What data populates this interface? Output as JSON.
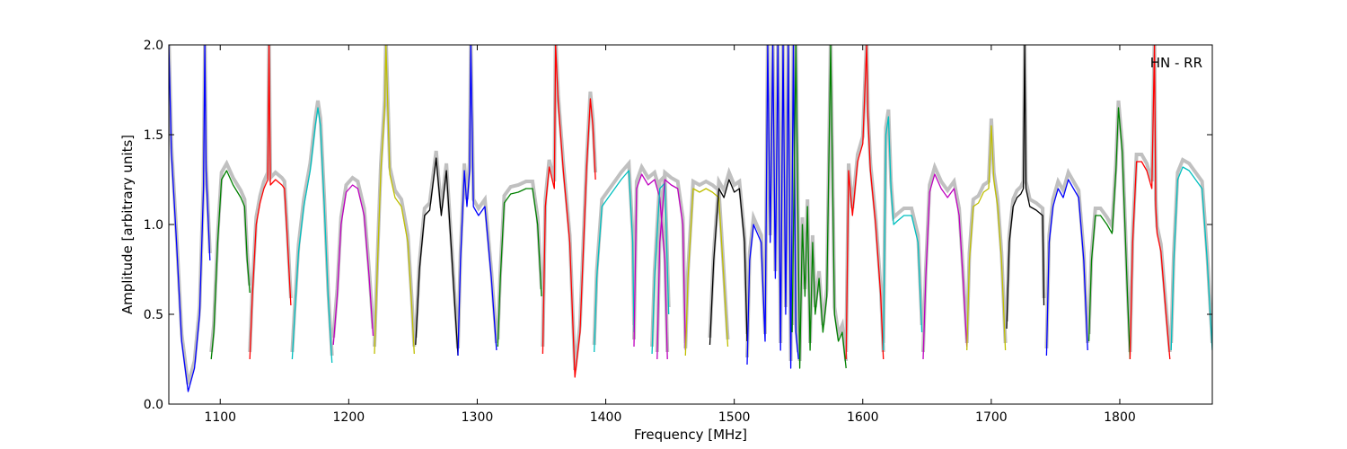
{
  "chart_data": {
    "type": "line",
    "xlabel": "Frequency [MHz]",
    "ylabel": "Amplitude [arbitrary units]",
    "annotation": "HN - RR",
    "xlim": [
      1060,
      1872
    ],
    "ylim": [
      0.0,
      2.0
    ],
    "x_ticks": [
      1100,
      1200,
      1300,
      1400,
      1500,
      1600,
      1700,
      1800
    ],
    "x_tick_labels": [
      "1100",
      "1200",
      "1300",
      "1400",
      "1500",
      "1600",
      "1700",
      "1800"
    ],
    "y_ticks": [
      0.0,
      0.5,
      1.0,
      1.5,
      2.0
    ],
    "y_tick_labels": [
      "0.0",
      "0.5",
      "1.0",
      "1.5",
      "2.0"
    ],
    "grid": false,
    "background_color": "#c0c0c0",
    "segments": [
      {
        "color": "#0000ff",
        "x": [
          1060,
          1062,
          1066,
          1070,
          1075,
          1080,
          1084,
          1087,
          1088,
          1089,
          1092
        ],
        "y": [
          2.0,
          1.4,
          0.9,
          0.35,
          0.07,
          0.2,
          0.5,
          1.2,
          2.0,
          1.3,
          0.8
        ]
      },
      {
        "color": "#008000",
        "x": [
          1093,
          1095,
          1098,
          1101,
          1105,
          1110,
          1116,
          1119,
          1121,
          1123
        ],
        "y": [
          0.25,
          0.4,
          0.9,
          1.25,
          1.3,
          1.22,
          1.15,
          1.1,
          0.8,
          0.62
        ]
      },
      {
        "color": "#ff0000",
        "x": [
          1123,
          1125,
          1128,
          1131,
          1134,
          1137,
          1138,
          1139,
          1143,
          1148,
          1150,
          1152,
          1155
        ],
        "y": [
          0.25,
          0.6,
          1.0,
          1.12,
          1.2,
          1.25,
          2.0,
          1.22,
          1.25,
          1.22,
          1.2,
          0.95,
          0.55
        ]
      },
      {
        "color": "#00bfbf",
        "x": [
          1156,
          1158,
          1161,
          1165,
          1170,
          1174,
          1176,
          1178,
          1181,
          1184,
          1187
        ],
        "y": [
          0.25,
          0.5,
          0.85,
          1.1,
          1.3,
          1.55,
          1.65,
          1.55,
          1.1,
          0.6,
          0.23
        ]
      },
      {
        "color": "#bf00bf",
        "x": [
          1188,
          1191,
          1194,
          1198,
          1203,
          1207,
          1212,
          1216,
          1219
        ],
        "y": [
          0.33,
          0.6,
          1.0,
          1.18,
          1.22,
          1.2,
          1.05,
          0.7,
          0.38
        ]
      },
      {
        "color": "#bfbf00",
        "x": [
          1220,
          1222,
          1225,
          1228,
          1229,
          1232,
          1236,
          1241,
          1246,
          1249,
          1251
        ],
        "y": [
          0.28,
          0.7,
          1.3,
          1.65,
          2.0,
          1.28,
          1.15,
          1.1,
          0.9,
          0.55,
          0.28
        ]
      },
      {
        "color": "#000000",
        "x": [
          1252,
          1255,
          1259,
          1263,
          1268,
          1272,
          1276,
          1280,
          1283,
          1285
        ],
        "y": [
          0.33,
          0.75,
          1.05,
          1.08,
          1.37,
          1.05,
          1.3,
          0.85,
          0.5,
          0.27
        ]
      },
      {
        "color": "#0000ff",
        "x": [
          1285,
          1287,
          1290,
          1292,
          1294,
          1295,
          1297,
          1301,
          1306,
          1311,
          1315
        ],
        "y": [
          0.27,
          0.8,
          1.3,
          1.1,
          1.3,
          2.0,
          1.1,
          1.05,
          1.1,
          0.7,
          0.3
        ]
      },
      {
        "color": "#008000",
        "x": [
          1316,
          1318,
          1321,
          1326,
          1332,
          1338,
          1343,
          1347,
          1350
        ],
        "y": [
          0.32,
          0.7,
          1.12,
          1.17,
          1.18,
          1.2,
          1.2,
          1.0,
          0.6
        ]
      },
      {
        "color": "#ff0000",
        "x": [
          1351,
          1353,
          1356,
          1360,
          1361,
          1363,
          1367,
          1372,
          1376,
          1380,
          1385,
          1388,
          1390,
          1392
        ],
        "y": [
          0.28,
          1.1,
          1.32,
          1.2,
          2.0,
          1.68,
          1.3,
          0.9,
          0.15,
          0.4,
          1.3,
          1.7,
          1.55,
          1.25
        ]
      },
      {
        "color": "#00bfbf",
        "x": [
          1391,
          1393,
          1397,
          1402,
          1407,
          1412,
          1418,
          1421,
          1422
        ],
        "y": [
          0.29,
          0.7,
          1.1,
          1.15,
          1.2,
          1.25,
          1.3,
          0.9,
          0.4
        ]
      },
      {
        "color": "#bf00bf",
        "x": [
          1422,
          1424,
          1428,
          1433,
          1438,
          1442,
          1446,
          1448
        ],
        "y": [
          0.32,
          1.2,
          1.28,
          1.22,
          1.25,
          1.15,
          0.8,
          0.25
        ]
      },
      {
        "color": "#00bfbf",
        "x": [
          1436,
          1438,
          1442,
          1446,
          1449
        ],
        "y": [
          0.28,
          0.7,
          1.2,
          1.23,
          0.5
        ]
      },
      {
        "color": "#bf00bf",
        "x": [
          1440,
          1442,
          1446,
          1451,
          1456,
          1460,
          1462
        ],
        "y": [
          0.25,
          0.9,
          1.25,
          1.22,
          1.2,
          1.0,
          0.3
        ]
      },
      {
        "color": "#bfbf00",
        "x": [
          1462,
          1464,
          1468,
          1473,
          1478,
          1483,
          1488,
          1491,
          1495
        ],
        "y": [
          0.27,
          0.7,
          1.2,
          1.18,
          1.2,
          1.18,
          1.15,
          0.8,
          0.32
        ]
      },
      {
        "color": "#000000",
        "x": [
          1481,
          1484,
          1488,
          1492,
          1496,
          1500,
          1504,
          1508,
          1510
        ],
        "y": [
          0.33,
          0.8,
          1.2,
          1.15,
          1.25,
          1.18,
          1.2,
          0.9,
          0.35
        ]
      },
      {
        "color": "#0000ff",
        "x": [
          1510,
          1512,
          1515,
          1518,
          1521,
          1524,
          1526,
          1528,
          1530,
          1532,
          1534,
          1536,
          1538,
          1540,
          1542,
          1544,
          1546,
          1548,
          1550
        ],
        "y": [
          0.22,
          0.8,
          1.0,
          0.95,
          0.9,
          0.35,
          2.0,
          0.9,
          2.0,
          0.7,
          2.0,
          0.3,
          2.0,
          0.5,
          2.0,
          0.2,
          2.0,
          0.4,
          0.25
        ]
      },
      {
        "color": "#008000",
        "x": [
          1545,
          1548,
          1551,
          1553,
          1555,
          1557,
          1559,
          1561,
          1563,
          1566,
          1569,
          1572,
          1575,
          1578,
          1581,
          1584,
          1587
        ],
        "y": [
          0.4,
          2.0,
          0.2,
          1.0,
          0.6,
          1.1,
          0.3,
          0.9,
          0.5,
          0.7,
          0.4,
          0.6,
          2.0,
          0.5,
          0.35,
          0.4,
          0.2
        ]
      },
      {
        "color": "#ff0000",
        "x": [
          1587,
          1589,
          1592,
          1596,
          1600,
          1603,
          1604,
          1606,
          1610,
          1614,
          1616
        ],
        "y": [
          0.25,
          1.3,
          1.05,
          1.35,
          1.45,
          2.0,
          1.6,
          1.3,
          1.0,
          0.6,
          0.25
        ]
      },
      {
        "color": "#00bfbf",
        "x": [
          1616,
          1618,
          1620,
          1622,
          1624,
          1627,
          1632,
          1638,
          1643,
          1646
        ],
        "y": [
          0.3,
          1.5,
          1.6,
          1.2,
          1.0,
          1.02,
          1.05,
          1.05,
          0.9,
          0.4
        ]
      },
      {
        "color": "#bf00bf",
        "x": [
          1647,
          1649,
          1652,
          1656,
          1661,
          1666,
          1671,
          1675,
          1678,
          1681
        ],
        "y": [
          0.25,
          0.7,
          1.18,
          1.28,
          1.2,
          1.15,
          1.2,
          1.05,
          0.7,
          0.32
        ]
      },
      {
        "color": "#bfbf00",
        "x": [
          1681,
          1683,
          1686,
          1690,
          1694,
          1698,
          1700,
          1702,
          1705,
          1708,
          1711
        ],
        "y": [
          0.3,
          0.8,
          1.1,
          1.12,
          1.18,
          1.2,
          1.55,
          1.25,
          1.1,
          0.8,
          0.3
        ]
      },
      {
        "color": "#000000",
        "x": [
          1712,
          1714,
          1717,
          1720,
          1723,
          1725,
          1726,
          1727,
          1730,
          1735,
          1740,
          1741
        ],
        "y": [
          0.42,
          0.9,
          1.1,
          1.15,
          1.17,
          1.2,
          2.0,
          1.2,
          1.1,
          1.08,
          1.05,
          0.55
        ]
      },
      {
        "color": "#0000ff",
        "x": [
          1743,
          1745,
          1748,
          1752,
          1756,
          1760,
          1764,
          1768,
          1772,
          1775
        ],
        "y": [
          0.27,
          0.9,
          1.1,
          1.2,
          1.15,
          1.25,
          1.2,
          1.15,
          0.8,
          0.3
        ]
      },
      {
        "color": "#008000",
        "x": [
          1776,
          1778,
          1781,
          1785,
          1790,
          1794,
          1797,
          1799,
          1802,
          1806,
          1808
        ],
        "y": [
          0.35,
          0.8,
          1.05,
          1.05,
          1.0,
          0.95,
          1.3,
          1.65,
          1.4,
          0.6,
          0.25
        ]
      },
      {
        "color": "#ff0000",
        "x": [
          1808,
          1810,
          1813,
          1817,
          1821,
          1825,
          1827,
          1828,
          1829,
          1832,
          1836,
          1839
        ],
        "y": [
          0.25,
          0.9,
          1.35,
          1.35,
          1.3,
          1.2,
          2.0,
          1.1,
          0.95,
          0.85,
          0.5,
          0.25
        ]
      },
      {
        "color": "#00bfbf",
        "x": [
          1840,
          1842,
          1845,
          1849,
          1854,
          1859,
          1864,
          1868,
          1872
        ],
        "y": [
          0.3,
          0.8,
          1.25,
          1.32,
          1.3,
          1.25,
          1.2,
          0.8,
          0.3
        ]
      }
    ]
  }
}
